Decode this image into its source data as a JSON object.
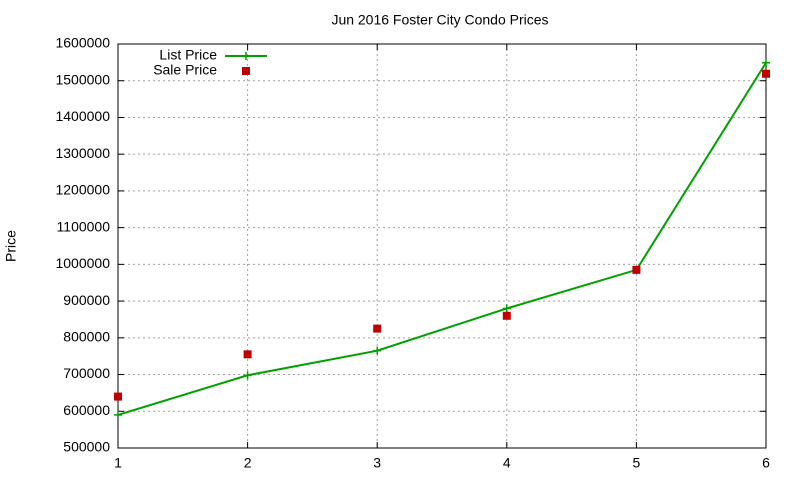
{
  "chart_data": {
    "type": "line",
    "title": "Jun 2016 Foster City Condo Prices",
    "y_label": "Price",
    "x": [
      1,
      2,
      3,
      4,
      5,
      6
    ],
    "series": [
      {
        "name": "List Price",
        "color": "#00a000",
        "mode": "linespoints",
        "values": [
          590000,
          698000,
          765000,
          880000,
          985000,
          1549000
        ]
      },
      {
        "name": "Sale Price",
        "color": "#c00000",
        "mode": "points",
        "values": [
          640000,
          755000,
          825000,
          860000,
          985000,
          1519000
        ]
      }
    ],
    "xlim": [
      1,
      6
    ],
    "xticks": [
      1,
      2,
      3,
      4,
      5,
      6
    ],
    "ylim": [
      500000,
      1600000
    ],
    "yticks": [
      500000,
      600000,
      700000,
      800000,
      900000,
      1000000,
      1100000,
      1200000,
      1300000,
      1400000,
      1500000,
      1600000
    ],
    "grid": true,
    "legend": "top-left"
  }
}
